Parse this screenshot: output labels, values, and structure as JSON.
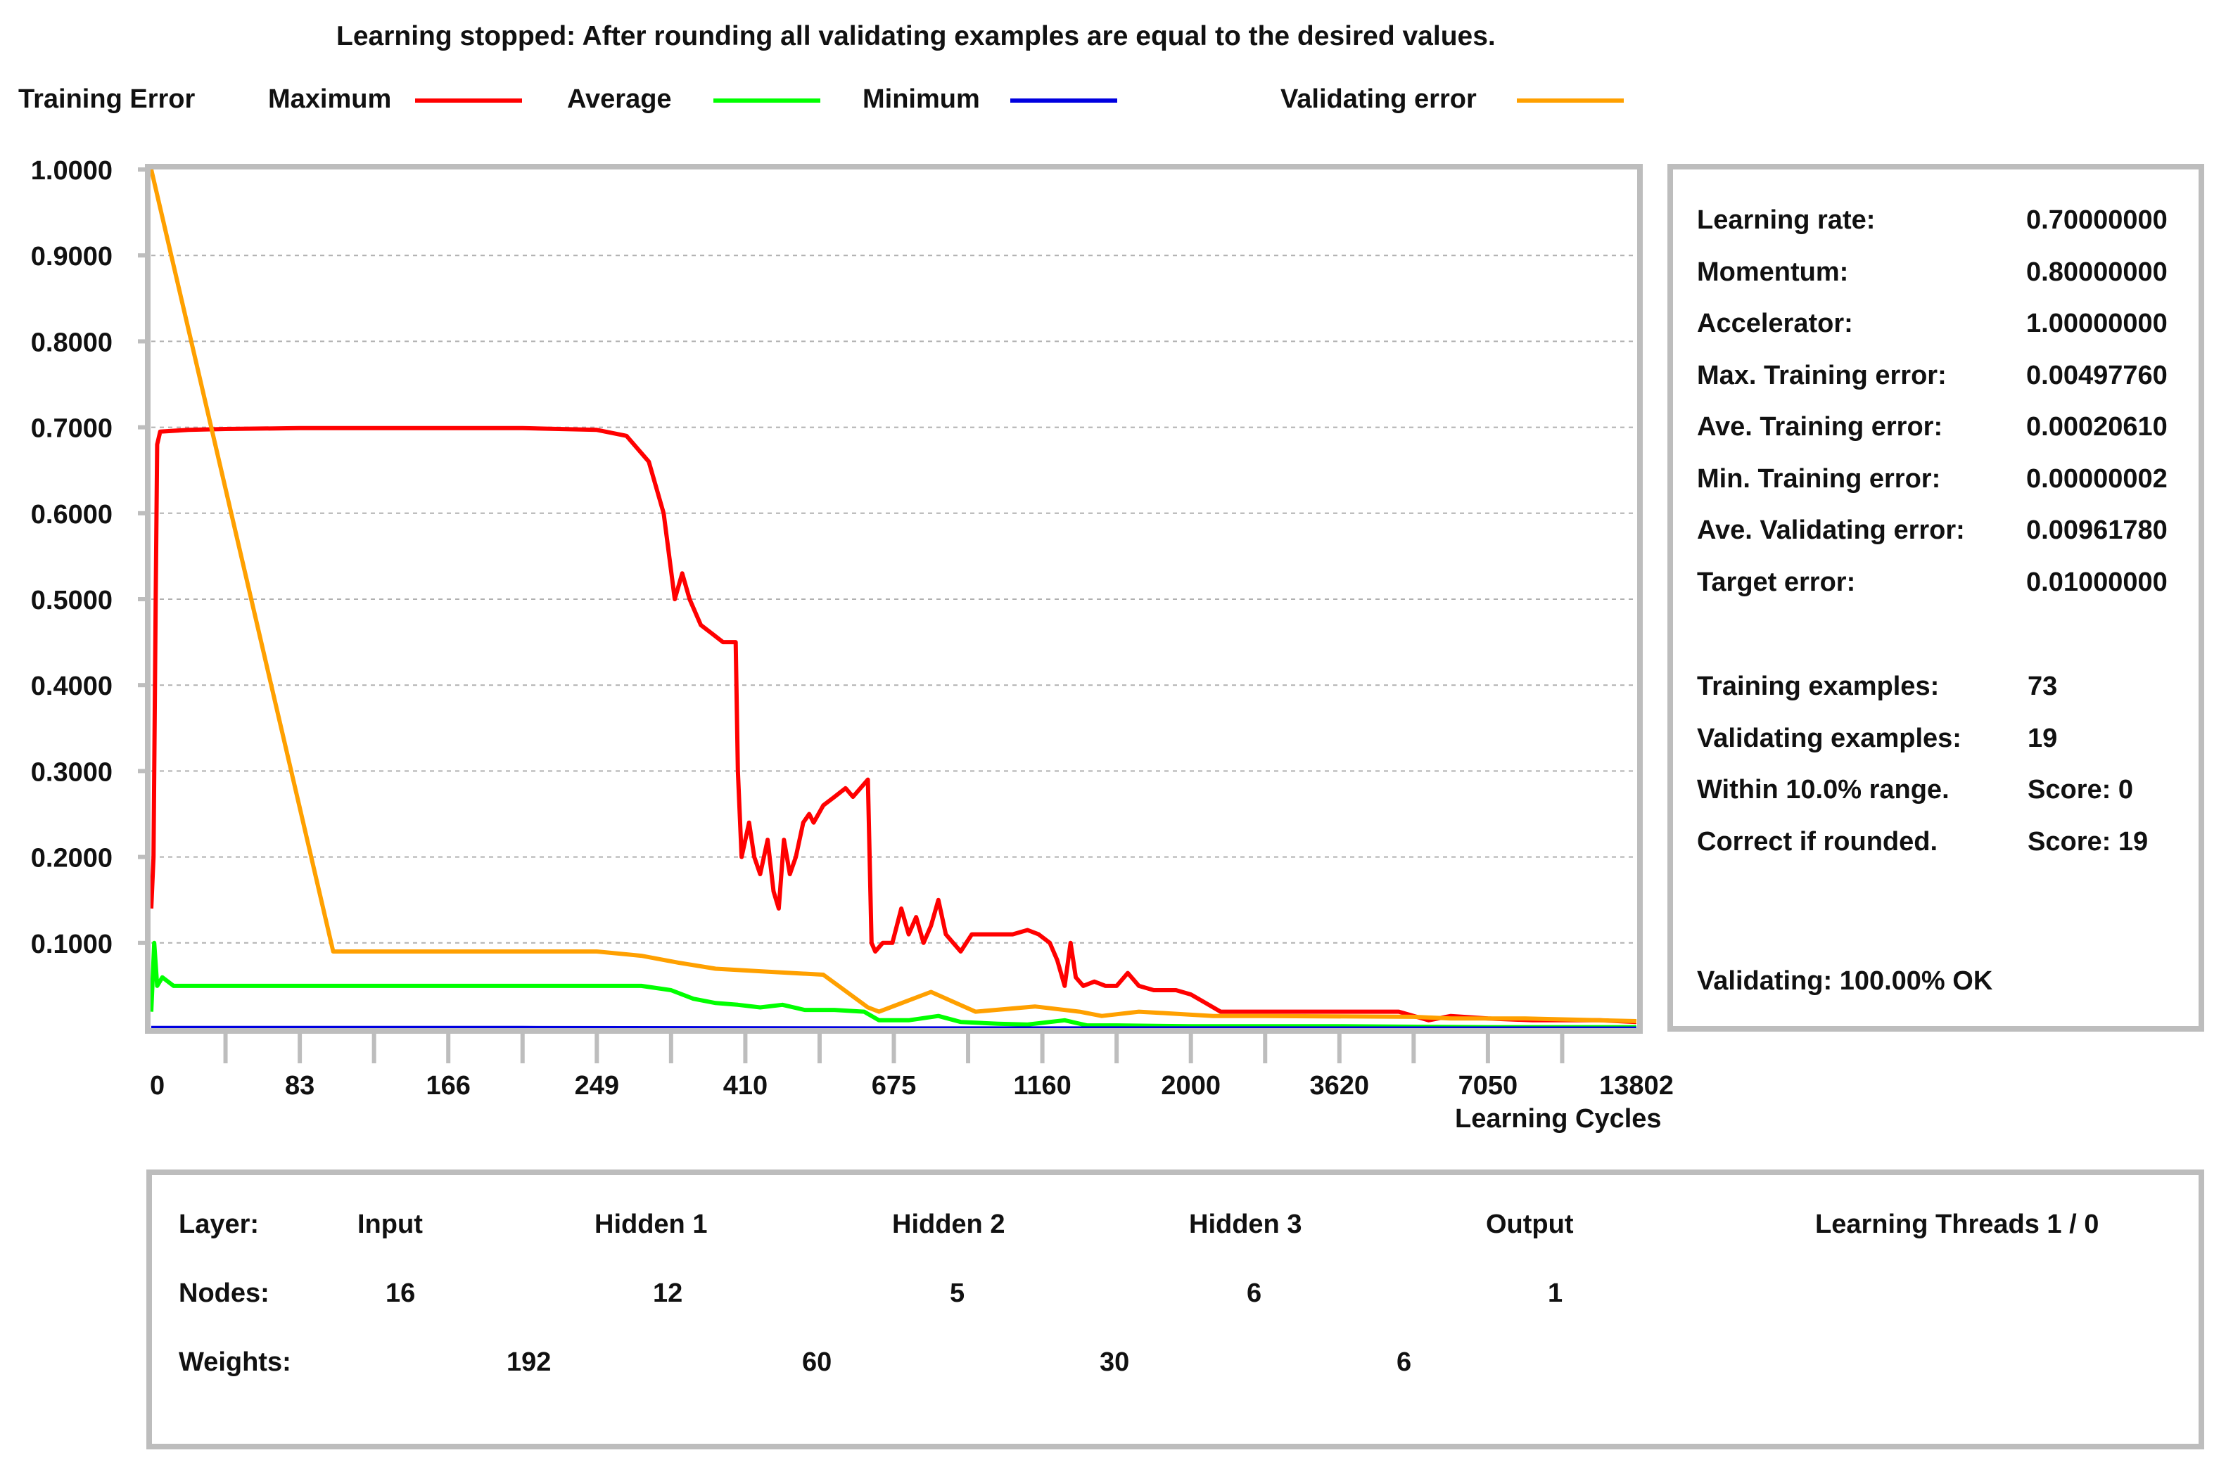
{
  "header": {
    "status": "Learning stopped: After rounding all validating examples are equal to the desired values."
  },
  "legend": {
    "title": "Training Error",
    "maximum": "Maximum",
    "average": "Average",
    "minimum": "Minimum",
    "validating": "Validating error"
  },
  "colors": {
    "maximum": "#ff0000",
    "average": "#00ff00",
    "minimum": "#0000e0",
    "validating": "#ffa000",
    "frame": "#bdbdbd",
    "grid": "#b0b0b0"
  },
  "chart_data": {
    "type": "line",
    "title": "Training Error",
    "xlabel": "Learning Cycles",
    "ylabel": "",
    "ylim": [
      0,
      1
    ],
    "xlim": [
      0,
      20
    ],
    "y_ticks": [
      "1.0000",
      "0.9000",
      "0.8000",
      "0.7000",
      "0.6000",
      "0.5000",
      "0.4000",
      "0.3000",
      "0.2000",
      "0.1000"
    ],
    "y_tick_values": [
      1.0,
      0.9,
      0.8,
      0.7,
      0.6,
      0.5,
      0.4,
      0.3,
      0.2,
      0.1
    ],
    "x_tick_labels": [
      "0",
      "83",
      "166",
      "249",
      "410",
      "675",
      "1160",
      "2000",
      "3620",
      "7050",
      "13802"
    ],
    "x_tick_positions": [
      0,
      2,
      4,
      6,
      8,
      10,
      12,
      14,
      16,
      18,
      20
    ],
    "x_minor_count": 20,
    "series": [
      {
        "name": "Maximum",
        "color_key": "maximum",
        "points": [
          [
            0,
            0.14
          ],
          [
            0.03,
            0.2
          ],
          [
            0.06,
            0.5
          ],
          [
            0.08,
            0.68
          ],
          [
            0.12,
            0.695
          ],
          [
            0.5,
            0.697
          ],
          [
            1,
            0.698
          ],
          [
            2,
            0.699
          ],
          [
            3,
            0.699
          ],
          [
            4,
            0.699
          ],
          [
            5,
            0.699
          ],
          [
            6,
            0.697
          ],
          [
            6.4,
            0.69
          ],
          [
            6.7,
            0.66
          ],
          [
            6.9,
            0.6
          ],
          [
            7.05,
            0.5
          ],
          [
            7.15,
            0.53
          ],
          [
            7.25,
            0.5
          ],
          [
            7.4,
            0.47
          ],
          [
            7.55,
            0.46
          ],
          [
            7.7,
            0.45
          ],
          [
            7.8,
            0.45
          ],
          [
            7.87,
            0.45
          ],
          [
            7.9,
            0.3
          ],
          [
            7.95,
            0.2
          ],
          [
            8.05,
            0.24
          ],
          [
            8.12,
            0.2
          ],
          [
            8.2,
            0.18
          ],
          [
            8.3,
            0.22
          ],
          [
            8.38,
            0.16
          ],
          [
            8.45,
            0.14
          ],
          [
            8.52,
            0.22
          ],
          [
            8.6,
            0.18
          ],
          [
            8.68,
            0.2
          ],
          [
            8.78,
            0.24
          ],
          [
            8.86,
            0.25
          ],
          [
            8.92,
            0.24
          ],
          [
            9.05,
            0.26
          ],
          [
            9.2,
            0.27
          ],
          [
            9.35,
            0.28
          ],
          [
            9.45,
            0.27
          ],
          [
            9.55,
            0.28
          ],
          [
            9.65,
            0.29
          ],
          [
            9.7,
            0.1
          ],
          [
            9.75,
            0.09
          ],
          [
            9.85,
            0.1
          ],
          [
            9.98,
            0.1
          ],
          [
            10.1,
            0.14
          ],
          [
            10.2,
            0.11
          ],
          [
            10.3,
            0.13
          ],
          [
            10.4,
            0.1
          ],
          [
            10.5,
            0.12
          ],
          [
            10.6,
            0.15
          ],
          [
            10.7,
            0.11
          ],
          [
            10.8,
            0.1
          ],
          [
            10.9,
            0.09
          ],
          [
            11.05,
            0.11
          ],
          [
            11.3,
            0.11
          ],
          [
            11.6,
            0.11
          ],
          [
            11.8,
            0.115
          ],
          [
            11.95,
            0.11
          ],
          [
            12.1,
            0.1
          ],
          [
            12.2,
            0.08
          ],
          [
            12.3,
            0.05
          ],
          [
            12.38,
            0.1
          ],
          [
            12.45,
            0.06
          ],
          [
            12.55,
            0.05
          ],
          [
            12.7,
            0.055
          ],
          [
            12.85,
            0.05
          ],
          [
            13,
            0.05
          ],
          [
            13.15,
            0.065
          ],
          [
            13.3,
            0.05
          ],
          [
            13.5,
            0.045
          ],
          [
            13.8,
            0.045
          ],
          [
            14,
            0.04
          ],
          [
            14.2,
            0.03
          ],
          [
            14.4,
            0.02
          ],
          [
            14.6,
            0.02
          ],
          [
            15,
            0.02
          ],
          [
            16,
            0.02
          ],
          [
            16.8,
            0.02
          ],
          [
            17.2,
            0.01
          ],
          [
            17.5,
            0.015
          ],
          [
            18,
            0.012
          ],
          [
            18.6,
            0.01
          ],
          [
            19,
            0.01
          ],
          [
            19.5,
            0.01
          ],
          [
            20,
            0.008
          ]
        ]
      },
      {
        "name": "Average",
        "color_key": "average",
        "points": [
          [
            0,
            0.02
          ],
          [
            0.04,
            0.1
          ],
          [
            0.08,
            0.05
          ],
          [
            0.15,
            0.06
          ],
          [
            0.3,
            0.05
          ],
          [
            1,
            0.05
          ],
          [
            3,
            0.05
          ],
          [
            5,
            0.05
          ],
          [
            6,
            0.05
          ],
          [
            6.6,
            0.05
          ],
          [
            7,
            0.045
          ],
          [
            7.3,
            0.035
          ],
          [
            7.6,
            0.03
          ],
          [
            7.9,
            0.028
          ],
          [
            8.2,
            0.025
          ],
          [
            8.5,
            0.028
          ],
          [
            8.8,
            0.022
          ],
          [
            9.2,
            0.022
          ],
          [
            9.6,
            0.02
          ],
          [
            9.8,
            0.01
          ],
          [
            10.2,
            0.01
          ],
          [
            10.6,
            0.015
          ],
          [
            10.9,
            0.008
          ],
          [
            11.4,
            0.006
          ],
          [
            11.8,
            0.005
          ],
          [
            12.3,
            0.01
          ],
          [
            12.6,
            0.004
          ],
          [
            13,
            0.004
          ],
          [
            14,
            0.003
          ],
          [
            16,
            0.003
          ],
          [
            18,
            0.002
          ],
          [
            20,
            0.002
          ]
        ]
      },
      {
        "name": "Minimum",
        "color_key": "minimum",
        "points": [
          [
            0,
            0.001
          ],
          [
            5,
            0.001
          ],
          [
            10,
            0.0005
          ],
          [
            15,
            0.0005
          ],
          [
            20,
            0.0003
          ]
        ]
      },
      {
        "name": "Validating error",
        "color_key": "validating",
        "points": [
          [
            0,
            1.0
          ],
          [
            2.45,
            0.09
          ],
          [
            3,
            0.09
          ],
          [
            4,
            0.09
          ],
          [
            5,
            0.09
          ],
          [
            6,
            0.09
          ],
          [
            6.6,
            0.085
          ],
          [
            7.1,
            0.077
          ],
          [
            7.6,
            0.07
          ],
          [
            8.2,
            0.067
          ],
          [
            9.05,
            0.063
          ],
          [
            9.65,
            0.025
          ],
          [
            9.8,
            0.02
          ],
          [
            10.5,
            0.043
          ],
          [
            11.1,
            0.02
          ],
          [
            11.9,
            0.026
          ],
          [
            12.5,
            0.02
          ],
          [
            12.8,
            0.015
          ],
          [
            13.3,
            0.02
          ],
          [
            13.7,
            0.018
          ],
          [
            14.3,
            0.015
          ],
          [
            15,
            0.015
          ],
          [
            17,
            0.014
          ],
          [
            17.5,
            0.012
          ],
          [
            18.5,
            0.012
          ],
          [
            19.5,
            0.01
          ],
          [
            20,
            0.009
          ]
        ]
      }
    ]
  },
  "stats": {
    "rows": [
      {
        "label": "Learning rate:",
        "value": "0.70000000"
      },
      {
        "label": "Momentum:",
        "value": "0.80000000"
      },
      {
        "label": "Accelerator:",
        "value": "1.00000000"
      },
      {
        "label": "Max. Training error:",
        "value": "0.00497760"
      },
      {
        "label": "Ave. Training error:",
        "value": "0.00020610"
      },
      {
        "label": "Min. Training error:",
        "value": "0.00000002"
      },
      {
        "label": "Ave. Validating error:",
        "value": "0.00961780"
      },
      {
        "label": "Target error:",
        "value": "0.01000000"
      }
    ],
    "rows2": [
      {
        "label": "Training examples:",
        "value": "73"
      },
      {
        "label": "Validating examples:",
        "value": "19"
      },
      {
        "label": "Within 10.0% range.",
        "value": "Score: 0"
      },
      {
        "label": "Correct if rounded.",
        "value": "Score: 19"
      }
    ],
    "validating_status": "Validating: 100.00% OK"
  },
  "network": {
    "layer_label": "Layer:",
    "nodes_label": "Nodes:",
    "weights_label": "Weights:",
    "layers": [
      {
        "name": "Input",
        "nodes": "16"
      },
      {
        "name": "Hidden 1",
        "nodes": "12"
      },
      {
        "name": "Hidden 2",
        "nodes": "5"
      },
      {
        "name": "Hidden 3",
        "nodes": "6"
      },
      {
        "name": "Output",
        "nodes": "1"
      }
    ],
    "weights": [
      "192",
      "60",
      "30",
      "6"
    ],
    "threads": "Learning Threads 1 / 0"
  }
}
